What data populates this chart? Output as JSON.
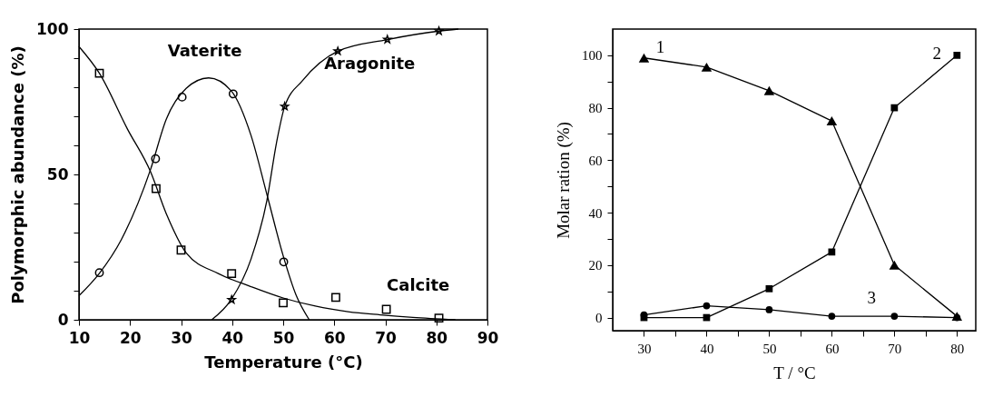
{
  "chart_data": [
    {
      "type": "line",
      "xlabel": "Temperature (°C)",
      "ylabel": "Polymorphic abundance (%)",
      "xlim": [
        10,
        90
      ],
      "ylim": [
        0,
        100
      ],
      "xticks": [
        10,
        20,
        30,
        40,
        50,
        60,
        70,
        80,
        90
      ],
      "yticks": [
        0,
        {
          "value": 10,
          "label": null
        },
        {
          "value": 20,
          "label": null
        },
        {
          "value": 30,
          "label": null
        },
        {
          "value": 40,
          "label": null
        },
        50,
        {
          "value": 60,
          "label": null
        },
        {
          "value": 70,
          "label": null
        },
        {
          "value": 80,
          "label": null
        },
        {
          "value": 90,
          "label": null
        },
        100
      ],
      "grid": false,
      "legend": false,
      "series": [
        {
          "name": "Vaterite",
          "type": "scatter",
          "marker": "circle",
          "color": "#000000",
          "x": [
            14,
            25,
            30.2,
            40.2,
            50.1
          ],
          "values": [
            16.2,
            55.4,
            76.6,
            77.7,
            19.9
          ]
        },
        {
          "name": "Aragonite",
          "type": "scatter",
          "marker": "star",
          "color": "#000000",
          "x": [
            39.9,
            50.3,
            60.7,
            70.4,
            80.5
          ],
          "values": [
            6.9,
            73.4,
            92.4,
            96.4,
            99.3
          ]
        },
        {
          "name": "Calcite",
          "type": "scatter",
          "marker": "square",
          "color": "#000000",
          "x": [
            14,
            25.1,
            30,
            39.9,
            50,
            60.3,
            70.2,
            80.5
          ],
          "values": [
            84.8,
            45.1,
            24,
            15.9,
            5.8,
            7.7,
            3.6,
            0.6
          ]
        },
        {
          "type": "line",
          "marker": "none",
          "color": "#000000",
          "x": [
            10,
            14,
            18.3,
            24,
            27.1,
            31,
            35.4,
            39.8,
            43.7,
            46.8,
            50,
            52.5,
            55.1
          ],
          "values": [
            8.3,
            16,
            27.6,
            51.6,
            69,
            79.6,
            83.2,
            78.8,
            63.4,
            43.2,
            22,
            8.6,
            0
          ]
        },
        {
          "type": "line",
          "marker": "none",
          "color": "#000000",
          "x": [
            36,
            39.8,
            43.7,
            46.8,
            48.7,
            50.3,
            53.8,
            60.7,
            70.4,
            80.5,
            84.3
          ],
          "values": [
            0,
            6.9,
            20.9,
            41,
            61,
            73.4,
            82.3,
            92.4,
            96.4,
            99.3,
            100
          ]
        },
        {
          "type": "line",
          "marker": "none",
          "color": "#000000",
          "x": [
            10,
            14,
            19.5,
            24,
            27.1,
            31,
            37.3,
            43.7,
            50,
            56.3,
            62.7,
            69,
            75.4,
            83.7
          ],
          "values": [
            94,
            84.8,
            65.6,
            51,
            36.5,
            23,
            15.9,
            11.4,
            7.5,
            4.7,
            2.8,
            1.7,
            0.8,
            0
          ]
        }
      ]
    },
    {
      "type": "line",
      "xlabel": "T / °C",
      "ylabel": "Molar ration (%)",
      "xlim": [
        25,
        83
      ],
      "ylim": [
        -5,
        110
      ],
      "xticks": [
        30,
        {
          "value": 35,
          "label": null
        },
        40,
        {
          "value": 45,
          "label": null
        },
        50,
        {
          "value": 55,
          "label": null
        },
        60,
        {
          "value": 65,
          "label": null
        },
        70,
        {
          "value": 75,
          "label": null
        },
        80
      ],
      "yticks": [
        0,
        {
          "value": 10,
          "label": null
        },
        20,
        {
          "value": 30,
          "label": null
        },
        40,
        {
          "value": 50,
          "label": null
        },
        60,
        {
          "value": 70,
          "label": null
        },
        80,
        {
          "value": 90,
          "label": null
        },
        100
      ],
      "grid": false,
      "legend": false,
      "series": [
        {
          "name": "1",
          "type": "line",
          "marker": "triangle",
          "color": "#000000",
          "x": [
            30,
            40,
            50,
            60,
            70,
            80
          ],
          "values": [
            99,
            95.5,
            86.5,
            75,
            20,
            0.5
          ]
        },
        {
          "name": "2",
          "type": "line",
          "marker": "square",
          "color": "#000000",
          "x": [
            30,
            40,
            50,
            60,
            70,
            80
          ],
          "values": [
            0,
            0,
            11,
            25,
            80,
            100
          ]
        },
        {
          "name": "3",
          "type": "line",
          "marker": "circle",
          "color": "#000000",
          "x": [
            30,
            40,
            50,
            60,
            70,
            80
          ],
          "values": [
            1,
            4.5,
            3,
            0.5,
            0.5,
            0
          ]
        }
      ]
    }
  ]
}
